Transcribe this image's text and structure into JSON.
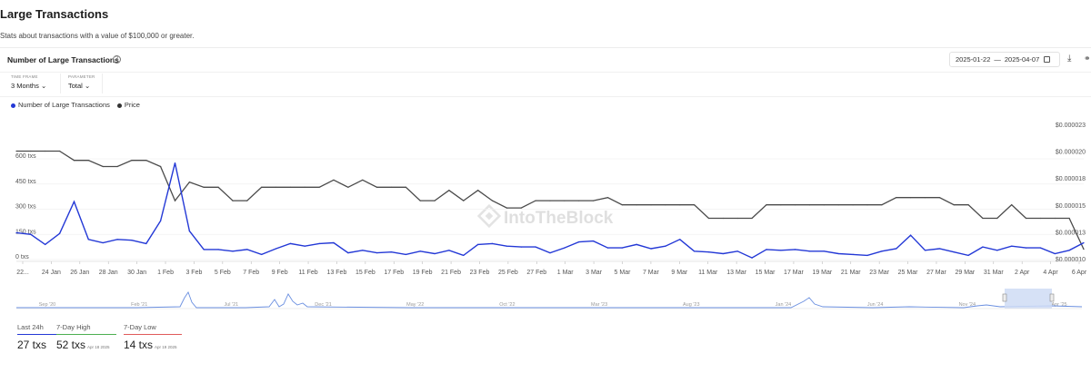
{
  "page": {
    "title": "Large Transactions",
    "subtitle": "Stats about transactions with a value of $100,000 or greater."
  },
  "card": {
    "title": "Number of Large Transactions",
    "date_start": "2025-01-22",
    "date_sep": "—",
    "date_end": "2025-04-07"
  },
  "controls": {
    "time_frame_label": "TIME FRAME",
    "time_frame_value": "3 Months",
    "parameter_label": "PARAMETER",
    "parameter_value": "Total"
  },
  "legend": {
    "series1": "Number of Large Transactions",
    "series2": "Price"
  },
  "watermark": "IntoTheBlock",
  "colors": {
    "transactions": "#2338d6",
    "price": "#4a4a4a",
    "high": "#4caf50",
    "low": "#e05b5b",
    "navigator": "#6a8fe0"
  },
  "chart_data": {
    "type": "line",
    "x_labels": [
      "22...",
      "24 Jan",
      "26 Jan",
      "28 Jan",
      "30 Jan",
      "1 Feb",
      "3 Feb",
      "5 Feb",
      "7 Feb",
      "9 Feb",
      "11 Feb",
      "13 Feb",
      "15 Feb",
      "17 Feb",
      "19 Feb",
      "21 Feb",
      "23 Feb",
      "25 Feb",
      "27 Feb",
      "1 Mar",
      "3 Mar",
      "5 Mar",
      "7 Mar",
      "9 Mar",
      "11 Mar",
      "13 Mar",
      "15 Mar",
      "17 Mar",
      "19 Mar",
      "21 Mar",
      "23 Mar",
      "25 Mar",
      "27 Mar",
      "29 Mar",
      "31 Mar",
      "2 Apr",
      "4 Apr",
      "6 Apr"
    ],
    "y_left_ticks": [
      "0 txs",
      "150 txs",
      "300 txs",
      "450 txs",
      "600 txs"
    ],
    "y_left_range": [
      0,
      800
    ],
    "y_right_ticks": [
      "$0.000010",
      "$0.000013",
      "$0.000015",
      "$0.000018",
      "$0.000020",
      "$0.000023"
    ],
    "y_right_range": [
      1e-05,
      2.3e-05
    ],
    "series": [
      {
        "name": "Number of Large Transactions",
        "axis": "left",
        "values": [
          160,
          150,
          90,
          155,
          345,
          120,
          100,
          120,
          115,
          95,
          230,
          575,
          170,
          60,
          60,
          50,
          60,
          30,
          65,
          95,
          80,
          95,
          100,
          40,
          55,
          40,
          45,
          30,
          50,
          35,
          55,
          25,
          90,
          95,
          80,
          75,
          75,
          40,
          70,
          105,
          110,
          70,
          70,
          90,
          65,
          80,
          120,
          50,
          45,
          35,
          50,
          10,
          60,
          55,
          60,
          50,
          50,
          35,
          30,
          25,
          50,
          65,
          145,
          55,
          65,
          45,
          25,
          75,
          55,
          80,
          70,
          70,
          35,
          55,
          100
        ]
      },
      {
        "name": "Price",
        "axis": "right",
        "values": [
          2.05e-05,
          2.05e-05,
          2.05e-05,
          2.05e-05,
          1.96e-05,
          1.96e-05,
          1.9e-05,
          1.9e-05,
          1.96e-05,
          1.96e-05,
          1.9e-05,
          1.57e-05,
          1.75e-05,
          1.7e-05,
          1.7e-05,
          1.57e-05,
          1.57e-05,
          1.7e-05,
          1.7e-05,
          1.7e-05,
          1.7e-05,
          1.7e-05,
          1.77e-05,
          1.7e-05,
          1.77e-05,
          1.7e-05,
          1.7e-05,
          1.7e-05,
          1.57e-05,
          1.57e-05,
          1.67e-05,
          1.57e-05,
          1.67e-05,
          1.57e-05,
          1.5e-05,
          1.5e-05,
          1.57e-05,
          1.57e-05,
          1.57e-05,
          1.57e-05,
          1.57e-05,
          1.6e-05,
          1.53e-05,
          1.53e-05,
          1.53e-05,
          1.53e-05,
          1.53e-05,
          1.53e-05,
          1.4e-05,
          1.4e-05,
          1.4e-05,
          1.4e-05,
          1.53e-05,
          1.53e-05,
          1.53e-05,
          1.53e-05,
          1.53e-05,
          1.53e-05,
          1.53e-05,
          1.53e-05,
          1.53e-05,
          1.6e-05,
          1.6e-05,
          1.6e-05,
          1.6e-05,
          1.53e-05,
          1.53e-05,
          1.4e-05,
          1.4e-05,
          1.53e-05,
          1.4e-05,
          1.4e-05,
          1.4e-05,
          1.4e-05,
          1.1e-05
        ]
      }
    ],
    "navigator_labels": [
      "Sep '20",
      "Feb '21",
      "Jul '21",
      "Dec '21",
      "May '22",
      "Oct '22",
      "Mar '23",
      "Aug '23",
      "Jan '24",
      "Jun '24",
      "Nov '24",
      "Apr '25"
    ]
  },
  "stats": [
    {
      "label": "Last 24h",
      "value": "27 txs",
      "date": ""
    },
    {
      "label": "7-Day High",
      "value": "52 txs",
      "date": "Apr 18 2025"
    },
    {
      "label": "7-Day Low",
      "value": "14 txs",
      "date": "Apr 19 2025"
    }
  ]
}
